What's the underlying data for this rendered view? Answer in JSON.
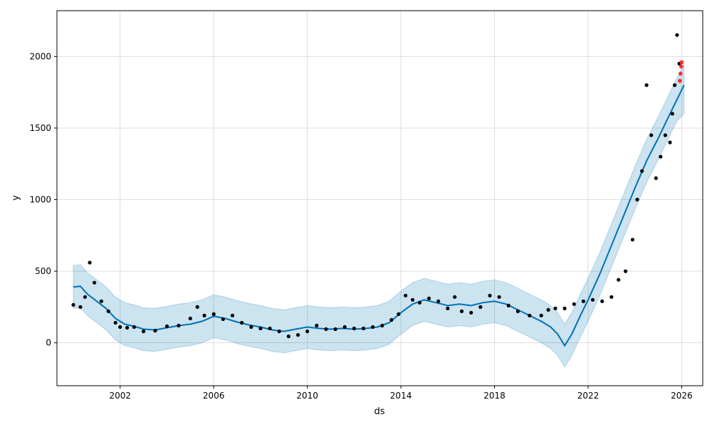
{
  "chart_data": {
    "type": "scatter",
    "xlabel": "ds",
    "ylabel": "y",
    "xlim": [
      1999.3,
      2026.9
    ],
    "ylim": [
      -300,
      2320
    ],
    "x_ticks": [
      2002,
      2006,
      2010,
      2014,
      2018,
      2022,
      2026
    ],
    "y_ticks": [
      0,
      500,
      1000,
      1500,
      2000
    ],
    "grid": true,
    "colors": {
      "observed": "#000000",
      "forecast_line": "#0072B2",
      "uncertainty_band": "#0072B2",
      "recent_actual": "#ff2a2a"
    },
    "series": [
      {
        "role": "observed",
        "style": "points",
        "x": [
          2000.0,
          2000.3,
          2000.5,
          2000.7,
          2000.9,
          2001.2,
          2001.5,
          2001.8,
          2002.0,
          2002.3,
          2002.6,
          2003.0,
          2003.5,
          2004.0,
          2004.5,
          2005.0,
          2005.3,
          2005.6,
          2006.0,
          2006.4,
          2006.8,
          2007.2,
          2007.6,
          2008.0,
          2008.4,
          2008.8,
          2009.2,
          2009.6,
          2010.0,
          2010.4,
          2010.8,
          2011.2,
          2011.6,
          2012.0,
          2012.4,
          2012.8,
          2013.2,
          2013.6,
          2013.9,
          2014.2,
          2014.5,
          2014.8,
          2015.2,
          2015.6,
          2016.0,
          2016.3,
          2016.6,
          2017.0,
          2017.4,
          2017.8,
          2018.2,
          2018.6,
          2019.0,
          2019.5,
          2020.0,
          2020.3,
          2020.6,
          2021.0,
          2021.4,
          2021.8,
          2022.2,
          2022.6,
          2023.0,
          2023.3,
          2023.6,
          2023.9,
          2024.1,
          2024.3,
          2024.5,
          2024.7,
          2024.9,
          2025.1,
          2025.3,
          2025.5,
          2025.6,
          2025.7,
          2025.8,
          2025.9
        ],
        "y": [
          265,
          250,
          320,
          560,
          420,
          290,
          220,
          140,
          110,
          105,
          110,
          80,
          85,
          115,
          120,
          170,
          250,
          190,
          200,
          165,
          190,
          140,
          110,
          100,
          100,
          80,
          45,
          55,
          80,
          120,
          95,
          95,
          110,
          100,
          100,
          110,
          120,
          160,
          200,
          330,
          300,
          280,
          310,
          290,
          240,
          320,
          220,
          210,
          250,
          330,
          320,
          260,
          220,
          190,
          190,
          230,
          240,
          240,
          270,
          290,
          300,
          290,
          320,
          440,
          500,
          720,
          1000,
          1200,
          1800,
          1450,
          1150,
          1300,
          1450,
          1400,
          1600,
          1800,
          2150,
          1950
        ]
      },
      {
        "role": "recent_actual",
        "style": "points",
        "x": [
          2025.92,
          2025.95,
          2025.98,
          2026.0
        ],
        "y": [
          1830,
          1880,
          1930,
          1960
        ]
      },
      {
        "role": "forecast_line",
        "style": "line",
        "x": [
          2000.0,
          2000.3,
          2000.6,
          2001.0,
          2001.4,
          2001.8,
          2002.2,
          2002.6,
          2003.0,
          2003.5,
          2004.0,
          2004.5,
          2005.0,
          2005.5,
          2006.0,
          2006.5,
          2007.0,
          2007.5,
          2008.0,
          2008.5,
          2009.0,
          2009.5,
          2010.0,
          2010.5,
          2011.0,
          2011.5,
          2012.0,
          2012.5,
          2013.0,
          2013.5,
          2014.0,
          2014.5,
          2015.0,
          2015.5,
          2016.0,
          2016.5,
          2017.0,
          2017.5,
          2018.0,
          2018.5,
          2019.0,
          2019.5,
          2020.0,
          2020.4,
          2020.7,
          2021.0,
          2021.3,
          2021.7,
          2022.0,
          2022.5,
          2023.0,
          2023.5,
          2024.0,
          2024.5,
          2025.0,
          2025.5,
          2025.8,
          2026.1
        ],
        "y": [
          390,
          395,
          340,
          290,
          240,
          170,
          130,
          115,
          95,
          90,
          105,
          120,
          130,
          150,
          185,
          170,
          145,
          125,
          110,
          90,
          80,
          95,
          110,
          100,
          95,
          100,
          95,
          100,
          110,
          140,
          210,
          270,
          300,
          280,
          260,
          270,
          260,
          280,
          290,
          270,
          230,
          190,
          150,
          110,
          60,
          -20,
          60,
          200,
          300,
          480,
          680,
          880,
          1080,
          1270,
          1430,
          1600,
          1700,
          1800
        ]
      },
      {
        "role": "uncertainty_band",
        "style": "band",
        "x": [
          2000.0,
          2000.3,
          2000.6,
          2001.0,
          2001.4,
          2001.8,
          2002.2,
          2002.6,
          2003.0,
          2003.5,
          2004.0,
          2004.5,
          2005.0,
          2005.5,
          2006.0,
          2006.5,
          2007.0,
          2007.5,
          2008.0,
          2008.5,
          2009.0,
          2009.5,
          2010.0,
          2010.5,
          2011.0,
          2011.5,
          2012.0,
          2012.5,
          2013.0,
          2013.5,
          2014.0,
          2014.5,
          2015.0,
          2015.5,
          2016.0,
          2016.5,
          2017.0,
          2017.5,
          2018.0,
          2018.5,
          2019.0,
          2019.5,
          2020.0,
          2020.4,
          2020.7,
          2021.0,
          2021.3,
          2021.7,
          2022.0,
          2022.5,
          2023.0,
          2023.5,
          2024.0,
          2024.5,
          2025.0,
          2025.5,
          2025.8,
          2026.1
        ],
        "lower": [
          240,
          245,
          190,
          140,
          90,
          20,
          -20,
          -35,
          -55,
          -60,
          -45,
          -30,
          -20,
          0,
          35,
          20,
          -5,
          -25,
          -40,
          -60,
          -70,
          -55,
          -40,
          -50,
          -55,
          -50,
          -55,
          -50,
          -40,
          -10,
          60,
          120,
          150,
          130,
          110,
          120,
          110,
          130,
          140,
          120,
          80,
          40,
          0,
          -40,
          -90,
          -170,
          -90,
          50,
          150,
          330,
          530,
          730,
          930,
          1120,
          1280,
          1450,
          1550,
          1600
        ],
        "upper": [
          540,
          545,
          490,
          440,
          390,
          320,
          280,
          265,
          245,
          240,
          255,
          270,
          280,
          300,
          335,
          320,
          295,
          275,
          260,
          240,
          230,
          245,
          260,
          250,
          245,
          250,
          245,
          250,
          260,
          290,
          360,
          420,
          450,
          430,
          410,
          420,
          410,
          430,
          440,
          420,
          380,
          340,
          300,
          260,
          210,
          130,
          210,
          350,
          450,
          630,
          830,
          1030,
          1230,
          1420,
          1580,
          1750,
          1850,
          1950
        ]
      }
    ]
  }
}
